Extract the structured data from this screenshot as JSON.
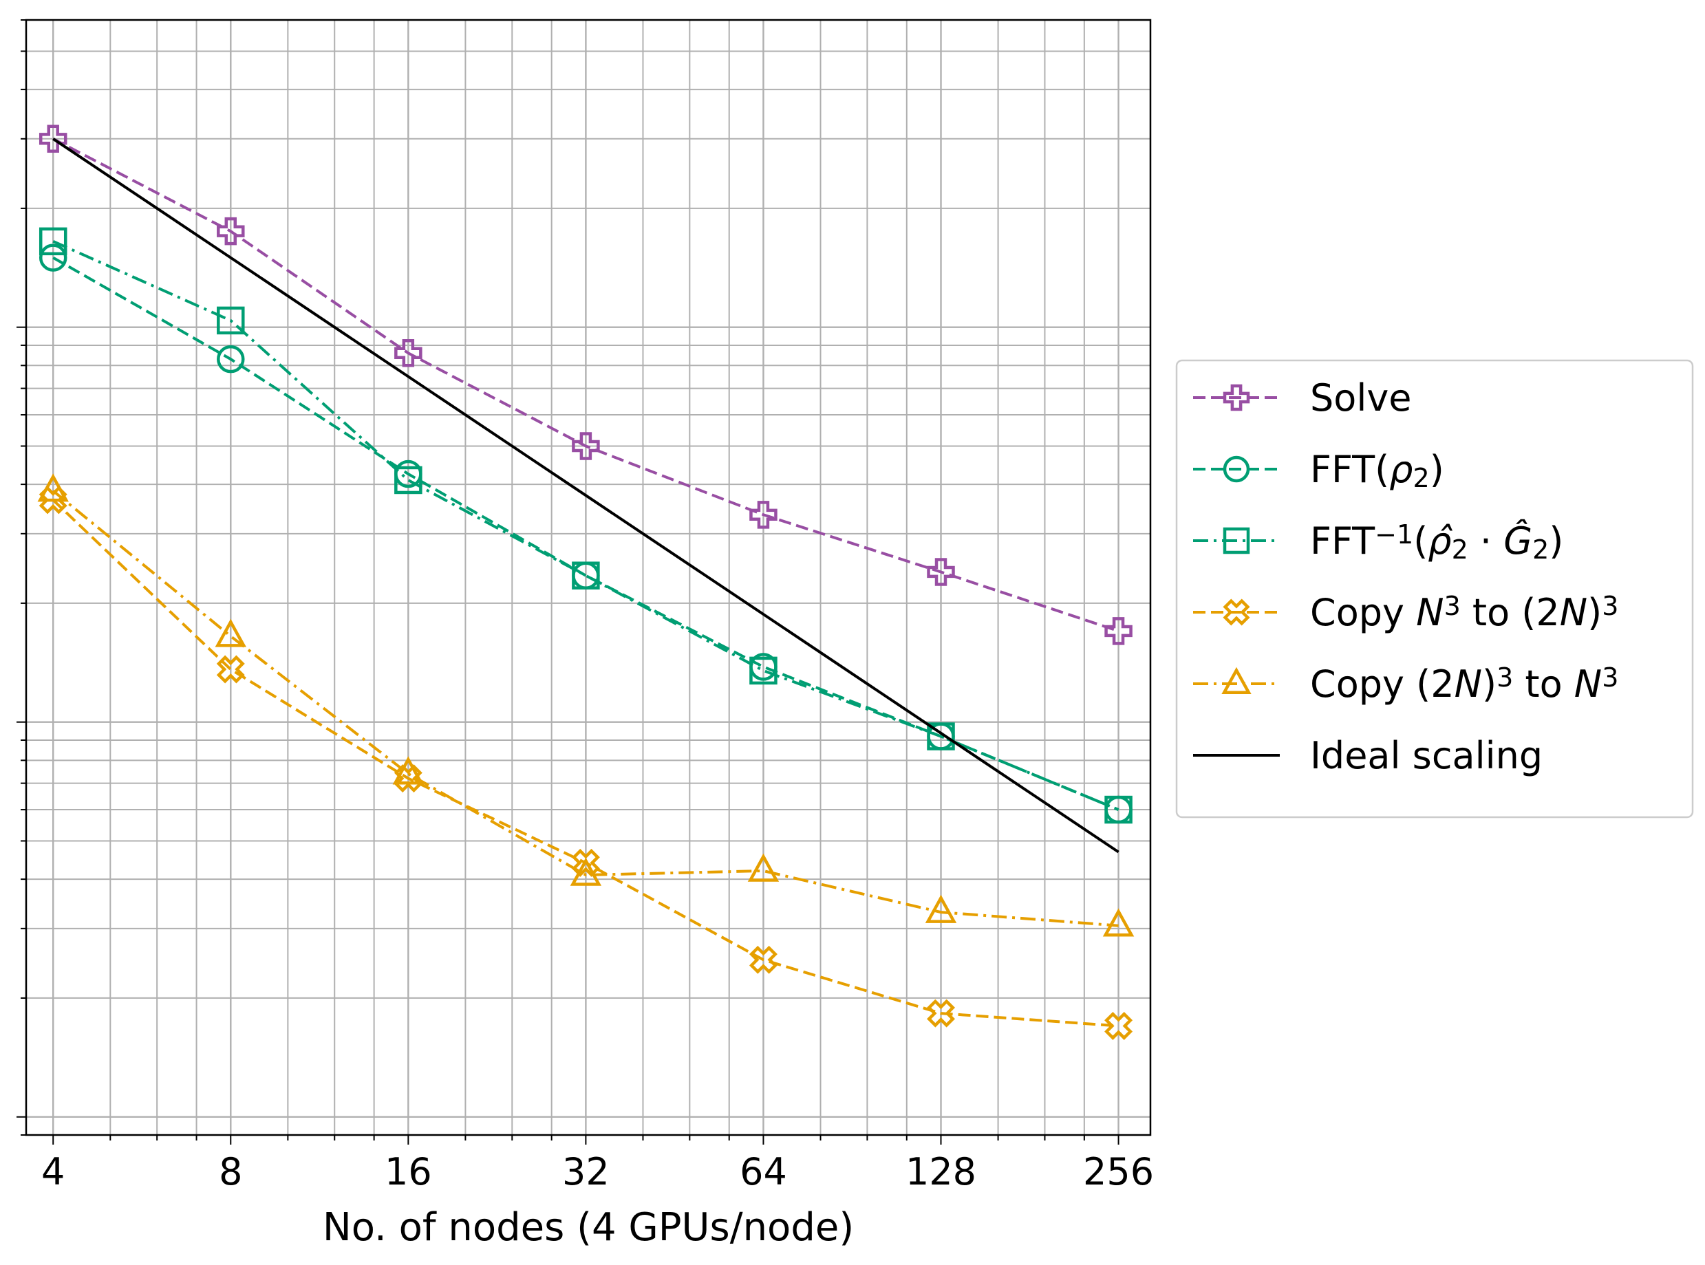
{
  "chart_data": {
    "type": "line",
    "title": "",
    "xlabel": "No. of nodes (4 GPUs/node)",
    "ylabel": "",
    "x_scale": "log2",
    "y_scale": "log",
    "grid": true,
    "legend_position": "outside-right",
    "x": [
      4,
      8,
      16,
      32,
      64,
      128,
      256
    ],
    "x_tick_labels": [
      "4",
      "8",
      "16",
      "32",
      "64",
      "128",
      "256"
    ],
    "xlim": [
      3.6,
      290
    ],
    "ylim": [
      0.09,
      60
    ],
    "series": [
      {
        "id": "solve",
        "name": "Solve",
        "name_parts": [
          {
            "t": "Solve"
          }
        ],
        "color": "#984ea3",
        "dash": "dashed",
        "marker": "plus",
        "values": [
          30,
          17.5,
          8.6,
          5.0,
          3.35,
          2.4,
          1.7
        ]
      },
      {
        "id": "fft",
        "name": "FFT(ρ2)",
        "name_parts": [
          {
            "t": "FFT("
          },
          {
            "t": "ρ",
            "style": "italic"
          },
          {
            "t": "2",
            "sub": true
          },
          {
            "t": ")"
          }
        ],
        "color": "#009e73",
        "dash": "dashed",
        "marker": "circle",
        "values": [
          15.0,
          8.3,
          4.25,
          2.35,
          1.38,
          0.92,
          0.6
        ]
      },
      {
        "id": "ifft",
        "name": "FFT−1(ρ̂2 · Ĝ2)",
        "name_parts": [
          {
            "t": "FFT"
          },
          {
            "t": "−1",
            "sup": true
          },
          {
            "t": "("
          },
          {
            "t": "ρ̂",
            "style": "italic"
          },
          {
            "t": "2",
            "sub": true
          },
          {
            "t": " · "
          },
          {
            "t": "Ĝ",
            "style": "italic"
          },
          {
            "t": "2",
            "sub": true
          },
          {
            "t": ")"
          }
        ],
        "color": "#009e73",
        "dash": "dashdot",
        "marker": "square",
        "values": [
          16.5,
          10.4,
          4.1,
          2.35,
          1.35,
          0.92,
          0.6
        ]
      },
      {
        "id": "copy1",
        "name": "Copy N3 to (2N)3",
        "name_parts": [
          {
            "t": "Copy "
          },
          {
            "t": "N",
            "style": "italic"
          },
          {
            "t": "3",
            "sup": true
          },
          {
            "t": " to (2"
          },
          {
            "t": "N",
            "style": "italic"
          },
          {
            "t": ")"
          },
          {
            "t": "3",
            "sup": true
          }
        ],
        "color": "#e69f00",
        "dash": "dashed",
        "marker": "x",
        "values": [
          3.65,
          1.36,
          0.72,
          0.44,
          0.25,
          0.183,
          0.17
        ]
      },
      {
        "id": "copy2",
        "name": "Copy (2N)3 to N3",
        "name_parts": [
          {
            "t": "Copy (2"
          },
          {
            "t": "N",
            "style": "italic"
          },
          {
            "t": ")"
          },
          {
            "t": "3",
            "sup": true
          },
          {
            "t": " to "
          },
          {
            "t": "N",
            "style": "italic"
          },
          {
            "t": "3",
            "sup": true
          }
        ],
        "color": "#e69f00",
        "dash": "dashdot",
        "marker": "triangle",
        "values": [
          3.85,
          1.65,
          0.74,
          0.41,
          0.42,
          0.33,
          0.305
        ]
      },
      {
        "id": "ideal",
        "name": "Ideal scaling",
        "name_parts": [
          {
            "t": "Ideal scaling"
          }
        ],
        "color": "#000000",
        "dash": "solid",
        "marker": "none",
        "values": [
          30,
          15,
          7.5,
          3.75,
          1.875,
          0.9375,
          0.46875
        ]
      }
    ]
  }
}
